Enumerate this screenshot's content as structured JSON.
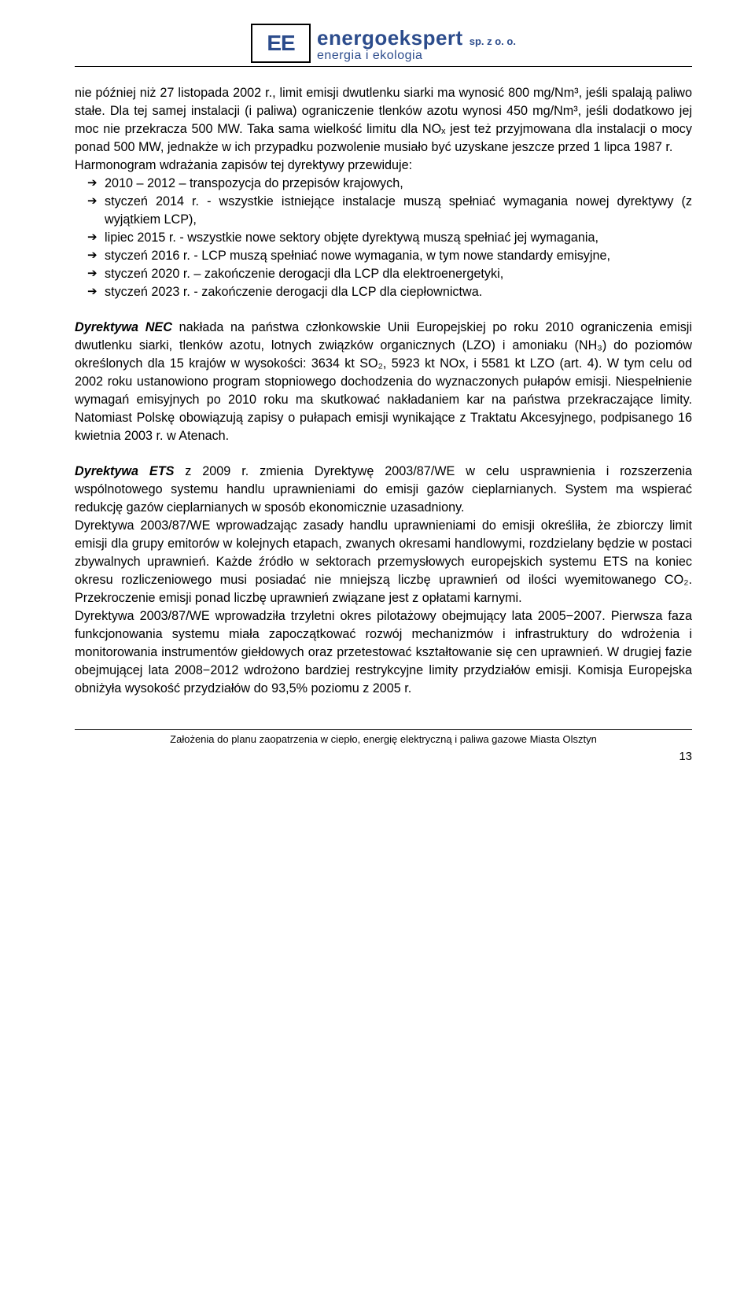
{
  "header": {
    "logo_text": "EE",
    "brand_name": "energoekspert",
    "brand_sp": "sp. z o. o.",
    "brand_sub": "energia  i  ekologia"
  },
  "para1": "nie później niż 27 listopada 2002 r., limit emisji dwutlenku siarki ma wynosić 800 mg/Nm³, jeśli spalają paliwo stałe. Dla tej samej instalacji (i paliwa) ograniczenie tlenków azotu wynosi 450 mg/Nm³, jeśli dodatkowo jej moc nie przekracza 500 MW. Taka sama wielkość limitu dla NOₓ jest też przyjmowana dla instalacji o mocy ponad 500 MW, jednakże w ich przypadku pozwolenie musiało być uzyskane jeszcze przed 1 lipca 1987 r.",
  "para2": "Harmonogram wdrażania zapisów tej dyrektywy przewiduje:",
  "bullets": [
    "2010 – 2012 – transpozycja do przepisów krajowych,",
    "styczeń 2014 r. - wszystkie istniejące instalacje muszą spełniać wymagania nowej dyrektywy (z wyjątkiem LCP),",
    "lipiec 2015 r. - wszystkie nowe sektory objęte dyrektywą muszą spełniać jej wymagania,",
    "styczeń 2016 r. - LCP muszą spełniać nowe wymagania, w tym nowe standardy emisyjne,",
    "styczeń 2020 r. – zakończenie derogacji dla LCP dla elektroenergetyki,",
    "styczeń 2023 r. - zakończenie derogacji dla LCP dla ciepłownictwa."
  ],
  "para3_lead": "Dyrektywa NEC",
  "para3_rest": " nakłada na państwa członkowskie Unii Europejskiej po roku 2010 ograniczenia emisji dwutlenku siarki, tlenków azotu, lotnych związków organicznych (LZO) i amoniaku (NH₃) do poziomów określonych dla 15 krajów w wysokości: 3634 kt SO₂, 5923 kt NOx, i 5581 kt LZO (art. 4). W tym celu od 2002 roku ustanowiono program stopniowego dochodzenia do wyznaczonych pułapów emisji. Niespełnienie wymagań emisyjnych po 2010 roku ma skutkować nakładaniem kar na państwa przekraczające limity. Natomiast Polskę obowiązują zapisy o pułapach emisji wynikające z Traktatu Akcesyjnego, podpisanego 16 kwietnia 2003 r. w Atenach.",
  "para4_lead": "Dyrektywa ETS",
  "para4_rest": " z 2009 r. zmienia Dyrektywę 2003/87/WE w celu usprawnienia i rozszerzenia wspólnotowego systemu handlu uprawnieniami do emisji gazów cieplarnianych. System ma wspierać redukcję gazów cieplarnianych w sposób ekonomicznie uzasadniony.",
  "para5": "Dyrektywa 2003/87/WE wprowadzając zasady handlu uprawnieniami do emisji określiła, że zbiorczy limit emisji dla grupy emitorów w kolejnych etapach, zwanych okresami handlowymi, rozdzielany będzie w postaci zbywalnych uprawnień. Każde źródło w sektorach przemysłowych europejskich systemu ETS na koniec okresu rozliczeniowego musi posiadać nie mniejszą liczbę uprawnień od ilości wyemitowanego CO₂. Przekroczenie emisji ponad liczbę uprawnień związane jest z opłatami karnymi.",
  "para6": "Dyrektywa 2003/87/WE wprowadziła trzyletni okres pilotażowy obejmujący lata 2005−2007. Pierwsza faza funkcjonowania systemu miała zapoczątkować rozwój mechanizmów i infrastruktury do wdrożenia i monitorowania instrumentów giełdowych oraz przetestować kształtowanie się cen uprawnień. W drugiej fazie obejmującej lata 2008−2012 wdrożono bardziej restrykcyjne limity przydziałów emisji. Komisja Europejska obniżyła wysokość przydziałów do 93,5% poziomu z 2005 r.",
  "footer": {
    "text": "Założenia do planu zaopatrzenia w ciepło, energię elektryczną i paliwa gazowe Miasta Olsztyn",
    "page": "13"
  }
}
